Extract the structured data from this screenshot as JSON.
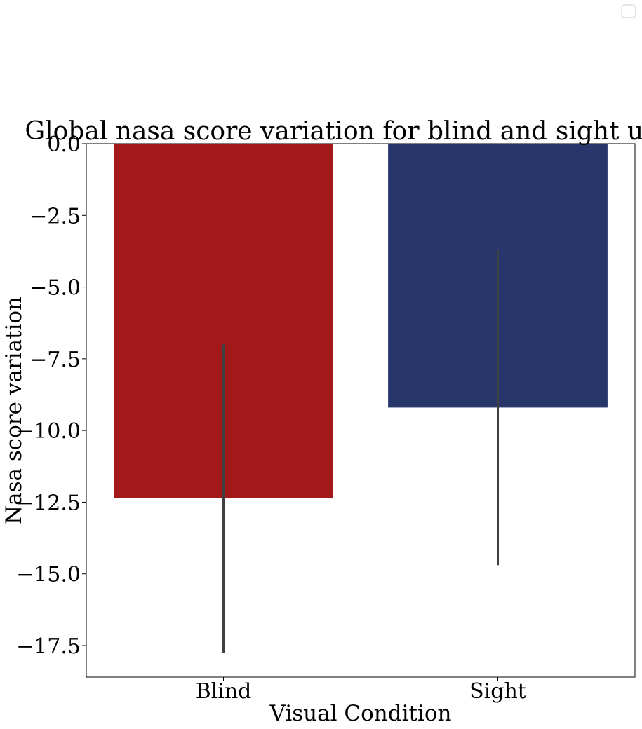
{
  "chart_data": {
    "type": "bar",
    "title": "Global nasa score variation for blind and sight users",
    "xlabel": "Visual Condition",
    "ylabel": "Nasa score variation",
    "categories": [
      "Blind",
      "Sight"
    ],
    "values": [
      -12.35,
      -9.2
    ],
    "error_bars": [
      {
        "category": "Blind",
        "low": -17.75,
        "high": -7.0
      },
      {
        "category": "Sight",
        "low": -14.7,
        "high": -3.7
      }
    ],
    "colors": [
      "#a31818",
      "#27376b"
    ],
    "error_color": "#404040",
    "ylim": [
      -18.6,
      0.0
    ],
    "yticks": [
      0.0,
      -2.5,
      -5.0,
      -7.5,
      -10.0,
      -12.5,
      -15.0,
      -17.5
    ],
    "ytick_labels": [
      "0.0",
      "−2.5",
      "−5.0",
      "−7.5",
      "−10.0",
      "−12.5",
      "−15.0",
      "−17.5"
    ],
    "grid": false,
    "legend": {
      "placement": "top-right",
      "entries": []
    }
  }
}
